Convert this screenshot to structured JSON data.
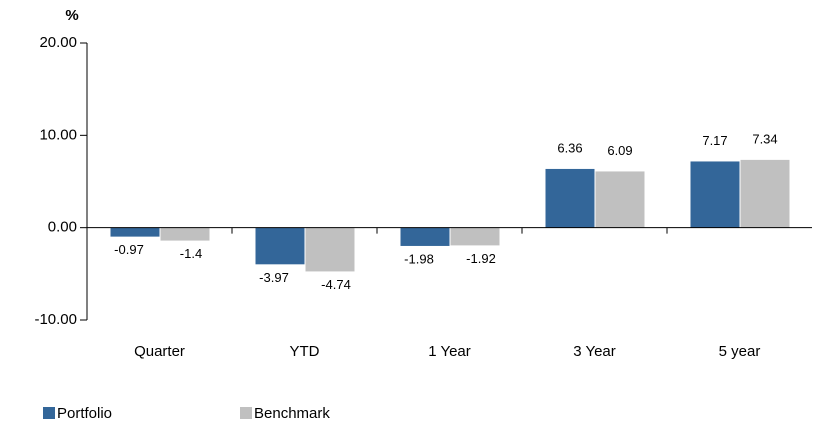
{
  "chart_data": {
    "type": "bar",
    "y_label": "%",
    "categories": [
      "Quarter",
      "YTD",
      "1 Year",
      "3 Year",
      "5 year"
    ],
    "series": [
      {
        "name": "Portfolio",
        "color": "#336699",
        "values": [
          -0.97,
          -3.97,
          -1.98,
          6.36,
          7.17
        ]
      },
      {
        "name": "Benchmark",
        "color": "#c0c0c0",
        "values": [
          -1.4,
          -4.74,
          -1.92,
          6.09,
          7.34
        ]
      }
    ],
    "ylim": [
      -10,
      20
    ],
    "yticks": [
      {
        "value": -10,
        "label": "-10.00"
      },
      {
        "value": 0,
        "label": "0.00"
      },
      {
        "value": 10,
        "label": "10.00"
      },
      {
        "value": 20,
        "label": "20.00"
      }
    ],
    "grid": false,
    "legend": "bottom-left"
  }
}
